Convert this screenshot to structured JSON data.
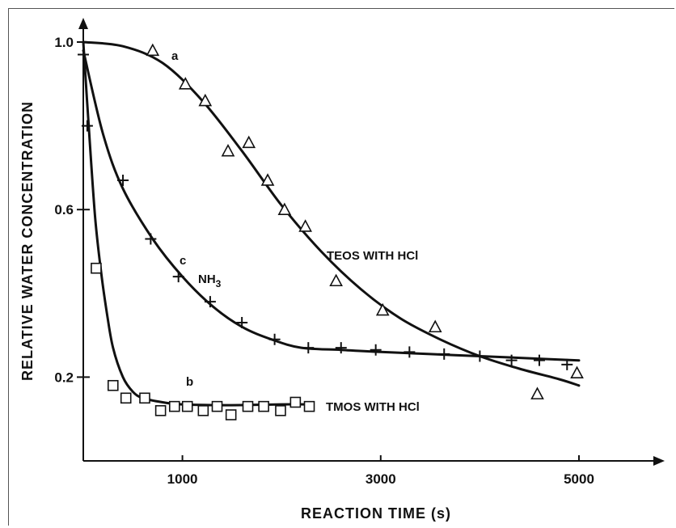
{
  "chart_data": {
    "type": "scatter",
    "title": "",
    "xlabel": "REACTION TIME (s)",
    "ylabel": "RELATIVE WATER CONCENTRATION",
    "xlim": [
      0,
      5600
    ],
    "ylim": [
      0,
      1.0
    ],
    "x_ticks": [
      1000,
      3000,
      5000
    ],
    "y_ticks": [
      0.2,
      0.6,
      1.0
    ],
    "x_tick_labels": [
      "1000",
      "3000",
      "5000"
    ],
    "y_tick_labels": [
      "0.2",
      "0.6",
      "1.0"
    ],
    "grid": false,
    "legend": "none",
    "series": [
      {
        "marker": "triangle",
        "curve_label": "a",
        "annotation": "TEOS WITH HCl",
        "x": [
          700,
          1030,
          1230,
          1460,
          1670,
          1860,
          2030,
          2240,
          2550,
          3020,
          3550,
          4580,
          4980
        ],
        "y": [
          0.98,
          0.9,
          0.86,
          0.74,
          0.76,
          0.67,
          0.6,
          0.56,
          0.43,
          0.36,
          0.32,
          0.16,
          0.21
        ],
        "fit_x": [
          0,
          400,
          800,
          1200,
          1600,
          2000,
          2400,
          2800,
          3200,
          3600,
          4000,
          4400,
          4800,
          5000
        ],
        "fit_y": [
          1.0,
          0.99,
          0.95,
          0.86,
          0.74,
          0.61,
          0.5,
          0.41,
          0.34,
          0.29,
          0.25,
          0.22,
          0.195,
          0.18
        ]
      },
      {
        "marker": "square",
        "curve_label": "b",
        "annotation": "TMOS WITH HCl",
        "x": [
          130,
          300,
          430,
          620,
          780,
          920,
          1050,
          1210,
          1350,
          1490,
          1660,
          1820,
          1990,
          2140,
          2280
        ],
        "y": [
          0.46,
          0.18,
          0.15,
          0.15,
          0.12,
          0.13,
          0.13,
          0.12,
          0.13,
          0.11,
          0.13,
          0.13,
          0.12,
          0.14,
          0.13
        ],
        "fit_x": [
          0,
          60,
          120,
          180,
          240,
          300,
          400,
          500,
          600,
          800,
          1000,
          1500,
          2000,
          2300
        ],
        "fit_y": [
          1.0,
          0.78,
          0.58,
          0.45,
          0.35,
          0.27,
          0.2,
          0.165,
          0.15,
          0.14,
          0.135,
          0.133,
          0.135,
          0.135
        ]
      },
      {
        "marker": "plus",
        "curve_label": "c",
        "annotation": "NH3",
        "x": [
          0,
          40,
          400,
          680,
          960,
          1280,
          1600,
          1930,
          2270,
          2600,
          2950,
          3290,
          3640,
          4000,
          4320,
          4600,
          4880
        ],
        "y": [
          0.97,
          0.8,
          0.67,
          0.53,
          0.44,
          0.38,
          0.33,
          0.29,
          0.27,
          0.27,
          0.265,
          0.26,
          0.255,
          0.25,
          0.24,
          0.24,
          0.23
        ],
        "fit_x": [
          0,
          200,
          400,
          700,
          1000,
          1300,
          1600,
          1900,
          2200,
          2600,
          3000,
          3500,
          4000,
          4500,
          5000
        ],
        "fit_y": [
          0.98,
          0.78,
          0.65,
          0.53,
          0.44,
          0.37,
          0.32,
          0.29,
          0.27,
          0.265,
          0.26,
          0.255,
          0.25,
          0.245,
          0.24
        ]
      }
    ]
  }
}
